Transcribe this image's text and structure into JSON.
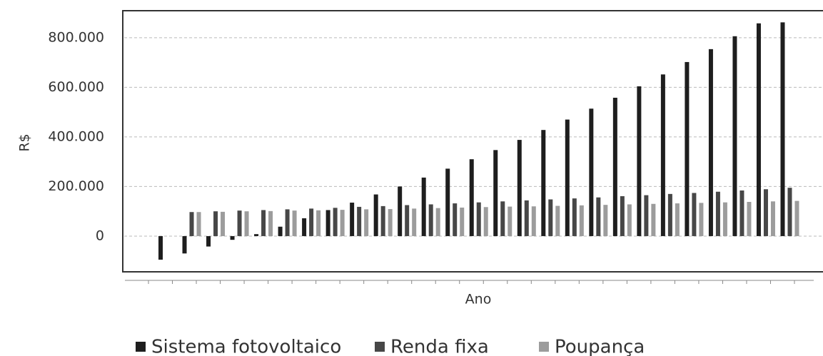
{
  "chart_data": {
    "type": "bar",
    "ylabel": "R$",
    "xlabel": "Ano",
    "categories": [
      null,
      null,
      null,
      null,
      null,
      null,
      null,
      null,
      null,
      null,
      null,
      null,
      null,
      null,
      null,
      null,
      null,
      null,
      null,
      null,
      null,
      null,
      null,
      null,
      null,
      null,
      null
    ],
    "series": [
      {
        "name": "Sistema fotovoltaico",
        "color": "#1e1e1e",
        "values": [
          -95000,
          -70000,
          -42000,
          -15000,
          8000,
          38000,
          72000,
          105000,
          135000,
          168000,
          200000,
          236000,
          272000,
          310000,
          347000,
          388000,
          428000,
          470000,
          514000,
          558000,
          604000,
          652000,
          702000,
          754000,
          806000,
          858000,
          862000
        ]
      },
      {
        "name": "Renda fixa",
        "color": "#474747",
        "values": [
          0,
          97000,
          100000,
          103000,
          105000,
          108000,
          111000,
          114000,
          118000,
          121000,
          125000,
          128000,
          132000,
          136000,
          140000,
          144000,
          148000,
          152000,
          156000,
          161000,
          165000,
          170000,
          174000,
          179000,
          184000,
          189000,
          195000
        ]
      },
      {
        "name": "Poupança",
        "color": "#9c9c9c",
        "values": [
          0,
          97000,
          98000,
          100000,
          101000,
          103000,
          104000,
          106000,
          108000,
          109000,
          111000,
          113000,
          115000,
          117000,
          119000,
          120000,
          122000,
          124000,
          126000,
          128000,
          130000,
          132000,
          134000,
          136000,
          138000,
          140000,
          142000
        ]
      }
    ],
    "ylim": [
      -144000,
      909000
    ],
    "yticks": [
      0,
      {
        "value": 200000,
        "label": "200.000"
      },
      {
        "value": 400000,
        "label": "400.000"
      },
      {
        "value": 600000,
        "label": "600.000"
      },
      {
        "value": 800000,
        "label": "800.000"
      }
    ],
    "grid": true,
    "legend": "bottom"
  }
}
